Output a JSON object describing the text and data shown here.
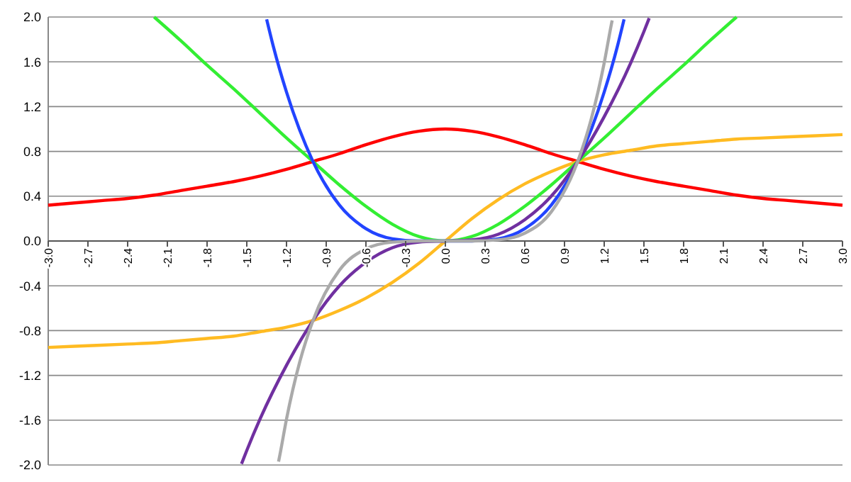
{
  "chart_data": {
    "type": "line",
    "x": [
      -3,
      -2.8,
      -2.6,
      -2.4,
      -2.2,
      -2,
      -1.8,
      -1.6,
      -1.4,
      -1.2,
      -1,
      -0.8,
      -0.6,
      -0.4,
      -0.2,
      0,
      0.2,
      0.4,
      0.6,
      0.8,
      1,
      1.2,
      1.4,
      1.6,
      1.8,
      2,
      2.2,
      2.4,
      2.6,
      2.8,
      3
    ],
    "series": [
      {
        "color": "#ff0000",
        "values": [
          0.32,
          0.34,
          0.36,
          0.38,
          0.41,
          0.45,
          0.49,
          0.53,
          0.58,
          0.64,
          0.71,
          0.78,
          0.86,
          0.93,
          0.98,
          1,
          0.98,
          0.93,
          0.86,
          0.78,
          0.71,
          0.64,
          0.58,
          0.53,
          0.49,
          0.45,
          0.41,
          0.38,
          0.36,
          0.34,
          0.32
        ]
      },
      {
        "color": "#ffbb22",
        "values": [
          -0.95,
          -0.94,
          -0.93,
          -0.92,
          -0.91,
          -0.89,
          -0.87,
          -0.85,
          -0.81,
          -0.77,
          -0.71,
          -0.62,
          -0.51,
          -0.37,
          -0.2,
          0,
          0.2,
          0.37,
          0.51,
          0.62,
          0.71,
          0.77,
          0.81,
          0.85,
          0.87,
          0.89,
          0.91,
          0.92,
          0.93,
          0.94,
          0.95
        ]
      },
      {
        "color": "#33ee33",
        "x": [
          -2.2,
          -2,
          -1.8,
          -1.6,
          -1.4,
          -1.2,
          -1,
          -0.8,
          -0.6,
          -0.4,
          -0.2,
          0,
          0.2,
          0.4,
          0.6,
          0.8,
          1,
          1.2,
          1.4,
          1.6,
          1.8,
          2,
          2.2
        ],
        "values": [
          2,
          1.79,
          1.57,
          1.36,
          1.14,
          0.92,
          0.71,
          0.5,
          0.31,
          0.15,
          0.04,
          0,
          0.04,
          0.15,
          0.31,
          0.5,
          0.71,
          0.92,
          1.14,
          1.36,
          1.57,
          1.79,
          2
        ]
      },
      {
        "color": "#2244ff",
        "x": [
          -1.35,
          -1.3,
          -1.2,
          -1,
          -0.8,
          -0.6,
          -0.4,
          -0.2,
          0,
          0.2,
          0.4,
          0.6,
          0.8,
          1,
          1.2,
          1.3,
          1.35
        ],
        "values": [
          1.98,
          1.74,
          1.33,
          0.71,
          0.32,
          0.11,
          0.02,
          0,
          0,
          0,
          0.02,
          0.11,
          0.32,
          0.71,
          1.33,
          1.74,
          1.98
        ]
      },
      {
        "color": "#7030a0",
        "x": [
          -1.54,
          -1.5,
          -1.4,
          -1.2,
          -1,
          -0.8,
          -0.6,
          -0.4,
          -0.2,
          0,
          0.2,
          0.4,
          0.6,
          0.8,
          1,
          1.2,
          1.4,
          1.5,
          1.54
        ],
        "values": [
          -1.99,
          -1.87,
          -1.59,
          -1.11,
          -0.71,
          -0.4,
          -0.19,
          -0.06,
          -0.01,
          0,
          0.01,
          0.06,
          0.19,
          0.4,
          0.71,
          1.11,
          1.59,
          1.87,
          1.99
        ]
      },
      {
        "color": "#aaaaaa",
        "x": [
          -1.26,
          -1.25,
          -1.2,
          -1.1,
          -1,
          -0.8,
          -0.6,
          -0.4,
          -0.2,
          0,
          0.2,
          0.4,
          0.6,
          0.8,
          1,
          1.1,
          1.2,
          1.25,
          1.26
        ],
        "values": [
          -1.97,
          -1.91,
          -1.59,
          -1.08,
          -0.71,
          -0.26,
          -0.07,
          -0.01,
          0,
          0,
          0,
          0.01,
          0.07,
          0.26,
          0.71,
          1.08,
          1.59,
          1.91,
          1.97
        ]
      }
    ],
    "xlim": [
      -3,
      3
    ],
    "xticks": [
      {
        "value": -3,
        "label": "-3.0"
      },
      {
        "value": -2.7,
        "label": "-2.7"
      },
      {
        "value": -2.4,
        "label": "-2.4"
      },
      {
        "value": -2.1,
        "label": "-2.1"
      },
      {
        "value": -1.8,
        "label": "-1.8"
      },
      {
        "value": -1.5,
        "label": "-1.5"
      },
      {
        "value": -1.2,
        "label": "-1.2"
      },
      {
        "value": -0.9,
        "label": "-0.9"
      },
      {
        "value": -0.6,
        "label": "-0.6"
      },
      {
        "value": -0.3,
        "label": "-0.3"
      },
      {
        "value": 0,
        "label": "0.0"
      },
      {
        "value": 0.3,
        "label": "0.3"
      },
      {
        "value": 0.6,
        "label": "0.6"
      },
      {
        "value": 0.9,
        "label": "0.9"
      },
      {
        "value": 1.2,
        "label": "1.2"
      },
      {
        "value": 1.5,
        "label": "1.5"
      },
      {
        "value": 1.8,
        "label": "1.8"
      },
      {
        "value": 2.1,
        "label": "2.1"
      },
      {
        "value": 2.4,
        "label": "2.4"
      },
      {
        "value": 2.7,
        "label": "2.7"
      },
      {
        "value": 3,
        "label": "3.0"
      }
    ],
    "ylim": [
      -2,
      2
    ],
    "yticks": [
      {
        "value": -2,
        "label": "-2.0"
      },
      {
        "value": -1.6,
        "label": "-1.6"
      },
      {
        "value": -1.2,
        "label": "-1.2"
      },
      {
        "value": -0.8,
        "label": "-0.8"
      },
      {
        "value": -0.4,
        "label": "-0.4"
      },
      {
        "value": 0,
        "label": "0.0"
      },
      {
        "value": 0.4,
        "label": "0.4"
      },
      {
        "value": 0.8,
        "label": "0.8"
      },
      {
        "value": 1.2,
        "label": "1.2"
      },
      {
        "value": 1.6,
        "label": "1.6"
      },
      {
        "value": 2,
        "label": "2.0"
      }
    ],
    "grid": "y",
    "marker": "none",
    "line_style": "solid"
  }
}
